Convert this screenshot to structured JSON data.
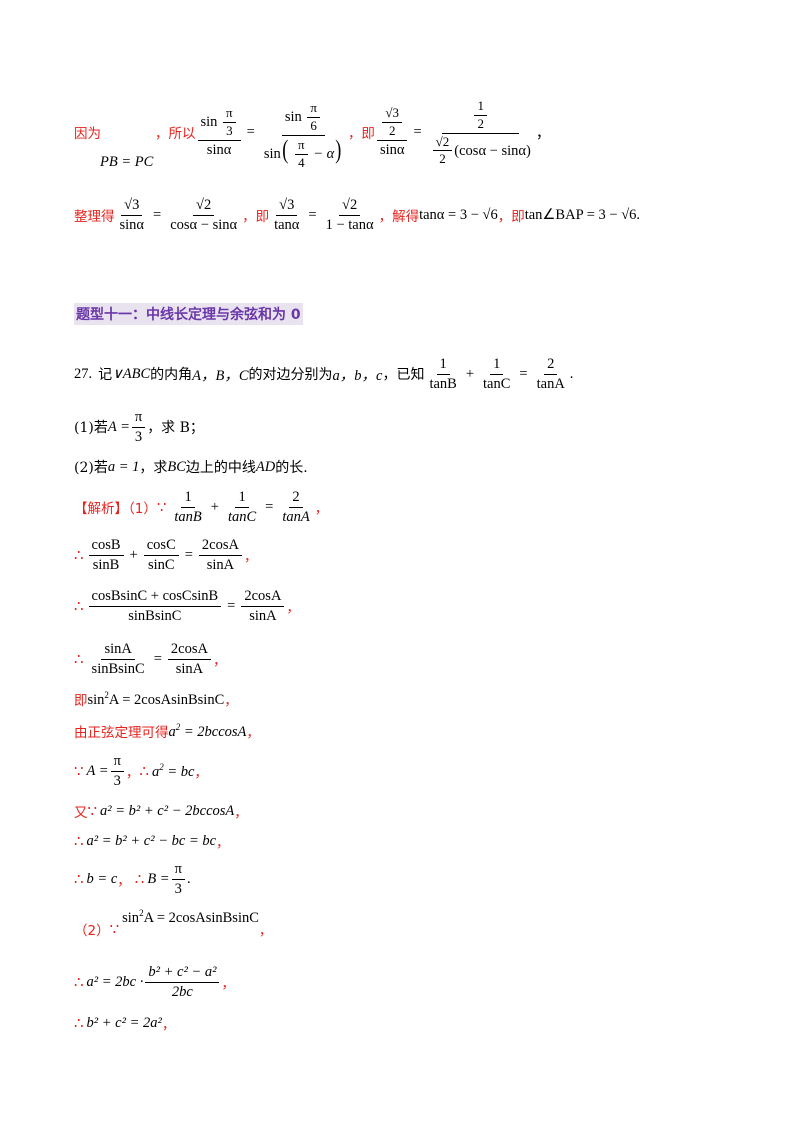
{
  "line1": {
    "because": "因为",
    "pb_eq_pc": "PB = PC",
    "so": "，所以",
    "f1_num_fn": "sin",
    "f1_num_ang_num": "π",
    "f1_num_ang_den": "3",
    "f1_den": "sinα",
    "f2_num_fn": "sin",
    "f2_num_ang_num": "π",
    "f2_num_ang_den": "6",
    "f2_den_fn": "sin",
    "f2_den_ang_num": "π",
    "f2_den_ang_den": "4",
    "f2_den_minus": "− α",
    "ji": "，即",
    "f3_num_top": "√3",
    "f3_num_bot": "2",
    "f3_den": "sinα",
    "f4_num_top": "1",
    "f4_num_bot": "2",
    "f4_den_sqrt_top": "√2",
    "f4_den_sqrt_bot": "2",
    "f4_den_expr": "(cosα − sinα)",
    "tail": "，"
  },
  "line2": {
    "zhengli": "整理得",
    "a_num": "√3",
    "a_den": "sinα",
    "b_num": "√2",
    "b_den": "cosα − sinα",
    "ji1": "，即",
    "c_num": "√3",
    "c_den": "tanα",
    "d_num": "√2",
    "d_den": "1 − tanα",
    "jiede": "，解得",
    "res1": "tanα = 3 − √6",
    "ji2": "，即",
    "res2": "tan∠BAP = 3 − √6",
    "end": "."
  },
  "heading": "题型十一：中线长定理与余弦和为 0",
  "problem": {
    "number": "27.",
    "ji": "记",
    "triangle": "∨ABC",
    "text1": "的内角",
    "angles": "A，B，C",
    "text2": "的对边分别为",
    "sides": "a，b，c",
    "text3": "，已知",
    "eq_f1_num": "1",
    "eq_f1_den": "tanB",
    "eq_f2_num": "1",
    "eq_f2_den": "tanC",
    "eq_f3_num": "2",
    "eq_f3_den": "tanA",
    "end": "."
  },
  "q1": {
    "label": "(1)若",
    "lhs": "A =",
    "num": "π",
    "den": "3",
    "rest": "，求 B；"
  },
  "q2": {
    "label": "(2)若",
    "cond": "a = 1",
    "mid": "，求",
    "bc": "BC",
    "text": "边上的中线",
    "ad": "AD",
    "end": "的长."
  },
  "solution": {
    "tag": "【解析】（1）",
    "s1": {
      "because": "∵",
      "f1n": "1",
      "f1d": "tanB",
      "f2n": "1",
      "f2d": "tanC",
      "f3n": "2",
      "f3d": "tanA",
      "end": "，"
    },
    "s2": {
      "therefore": "∴",
      "f1n": "cosB",
      "f1d": "sinB",
      "f2n": "cosC",
      "f2d": "sinC",
      "f3n": "2cosA",
      "f3d": "sinA",
      "end": "，"
    },
    "s3": {
      "therefore": "∴",
      "f1n": "cosBsinC + cosCsinB",
      "f1d": "sinBsinC",
      "f3n": "2cosA",
      "f3d": "sinA",
      "end": "，"
    },
    "s4": {
      "therefore": "∴",
      "f1n": "sinA",
      "f1d": "sinBsinC",
      "f3n": "2cosA",
      "f3d": "sinA",
      "end": "，"
    },
    "s5": {
      "ji": "即",
      "expr_a": "sin",
      "expr_b": "A = 2cosAsinBsinC",
      "end": "，"
    },
    "s6": {
      "text": "由正弦定理可得",
      "expr_a": "a",
      "expr_b": " = 2bccosA",
      "end": "，"
    },
    "s7": {
      "because": "∵",
      "lhs": "A =",
      "num": "π",
      "den": "3",
      "sep": "，",
      "therefore": "∴",
      "expr_a": "a",
      "expr_b": " = bc",
      "end": "，"
    },
    "s8": {
      "you": "又",
      "because": "∵",
      "expr": "a² = b² + c² − 2bccosA",
      "end": "，"
    },
    "s9": {
      "therefore": "∴",
      "expr": "a² = b² + c² − bc = bc",
      "end": "，"
    },
    "s10": {
      "therefore": "∴",
      "expr": "b = c",
      "sep": "，",
      "therefore2": "∴",
      "lhs": "B =",
      "num": "π",
      "den": "3",
      "end": "."
    },
    "s11": {
      "label": "（2）",
      "because": "∵",
      "expr_a": "sin",
      "expr_b": "A = 2cosAsinBsinC",
      "end": "，"
    },
    "s12": {
      "therefore": "∴",
      "lhs": "a² = 2bc ·",
      "num": "b² + c² − a²",
      "den": "2bc",
      "end": "，"
    },
    "s13": {
      "therefore": "∴",
      "expr": "b² + c² = 2a²",
      "end": "，"
    }
  }
}
